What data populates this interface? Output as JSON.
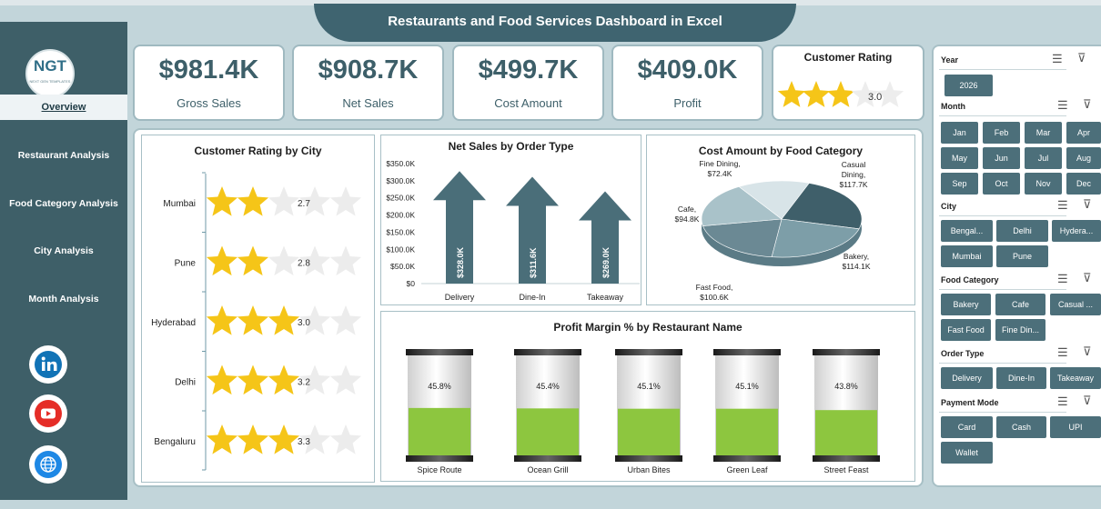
{
  "title": "Restaurants and Food Services Dashboard in Excel",
  "logo": {
    "text": "NGT",
    "subtext": "NEXT GEN TEMPLATES"
  },
  "nav": [
    {
      "label": "Overview",
      "active": true
    },
    {
      "label": "Restaurant Analysis"
    },
    {
      "label": "Food Category Analysis"
    },
    {
      "label": "City Analysis"
    },
    {
      "label": "Month Analysis"
    }
  ],
  "social": [
    "linkedin-icon",
    "youtube-icon",
    "globe-icon"
  ],
  "kpis": [
    {
      "value": "$981.4K",
      "label": "Gross Sales"
    },
    {
      "value": "$908.7K",
      "label": "Net Sales"
    },
    {
      "value": "$499.7K",
      "label": "Cost Amount"
    },
    {
      "value": "$409.0K",
      "label": "Profit"
    }
  ],
  "customer_rating": {
    "title": "Customer Rating",
    "value": "3.0",
    "stars": 3
  },
  "chart_data": [
    {
      "type": "bar",
      "title": "Customer Rating by City",
      "categories": [
        "Mumbai",
        "Pune",
        "Hyderabad",
        "Delhi",
        "Bengaluru"
      ],
      "values": [
        2.7,
        2.8,
        3.0,
        3.2,
        3.3
      ],
      "labels": [
        "2.7",
        "2.8",
        "3.0",
        "3.2",
        "3.3"
      ],
      "max": 5
    },
    {
      "type": "bar",
      "title": "Net Sales by Order Type",
      "categories": [
        "Delivery",
        "Dine-In",
        "Takeaway"
      ],
      "values": [
        328.0,
        311.6,
        269.0
      ],
      "labels": [
        "$328.0K",
        "$311.6K",
        "$269.0K"
      ],
      "yticks": [
        "$350.0K",
        "$300.0K",
        "$250.0K",
        "$200.0K",
        "$150.0K",
        "$100.0K",
        "$50.0K",
        "$0"
      ],
      "ylim": [
        0,
        350
      ]
    },
    {
      "type": "pie",
      "title": "Cost Amount by Food Category",
      "categories": [
        "Casual Dining",
        "Bakery",
        "Fast Food",
        "Cafe",
        "Fine Dining"
      ],
      "values": [
        117.7,
        114.1,
        100.6,
        94.8,
        72.4
      ],
      "labels": [
        "Casual Dining, $117.7K",
        "Bakery, $114.1K",
        "Fast Food, $100.6K",
        "Cafe, $94.8K",
        "Fine Dining, $72.4K"
      ],
      "colors": [
        "#3f5f6a",
        "#7d9ea8",
        "#6b8994",
        "#a9c2c9",
        "#d8e4e8"
      ]
    },
    {
      "type": "bar",
      "title": "Profit Margin % by Restaurant Name",
      "categories": [
        "Spice Route",
        "Ocean Grill",
        "Urban Bites",
        "Green Leaf",
        "Street Feast"
      ],
      "values": [
        45.8,
        45.4,
        45.1,
        45.1,
        43.8
      ],
      "labels": [
        "45.8%",
        "45.4%",
        "45.1%",
        "45.1%",
        "43.8%"
      ]
    }
  ],
  "filters": [
    {
      "title": "Year",
      "items": [
        "2026"
      ]
    },
    {
      "title": "Month",
      "items": [
        "Jan",
        "Feb",
        "Mar",
        "Apr",
        "May",
        "Jun",
        "Jul",
        "Aug",
        "Sep",
        "Oct",
        "Nov",
        "Dec"
      ]
    },
    {
      "title": "City",
      "items": [
        "Bengal...",
        "Delhi",
        "Hydera...",
        "Mumbai",
        "Pune"
      ]
    },
    {
      "title": "Food Category",
      "items": [
        "Bakery",
        "Cafe",
        "Casual ...",
        "Fast Food",
        "Fine Din..."
      ]
    },
    {
      "title": "Order Type",
      "items": [
        "Delivery",
        "Dine-In",
        "Takeaway"
      ]
    },
    {
      "title": "Payment Mode",
      "items": [
        "Card",
        "Cash",
        "UPI",
        "Wallet"
      ]
    }
  ],
  "colors": {
    "primary": "#3e5f68",
    "arrow": "#4a6e79",
    "star": "#f5c518",
    "margin_fill": "#8dc63f"
  }
}
